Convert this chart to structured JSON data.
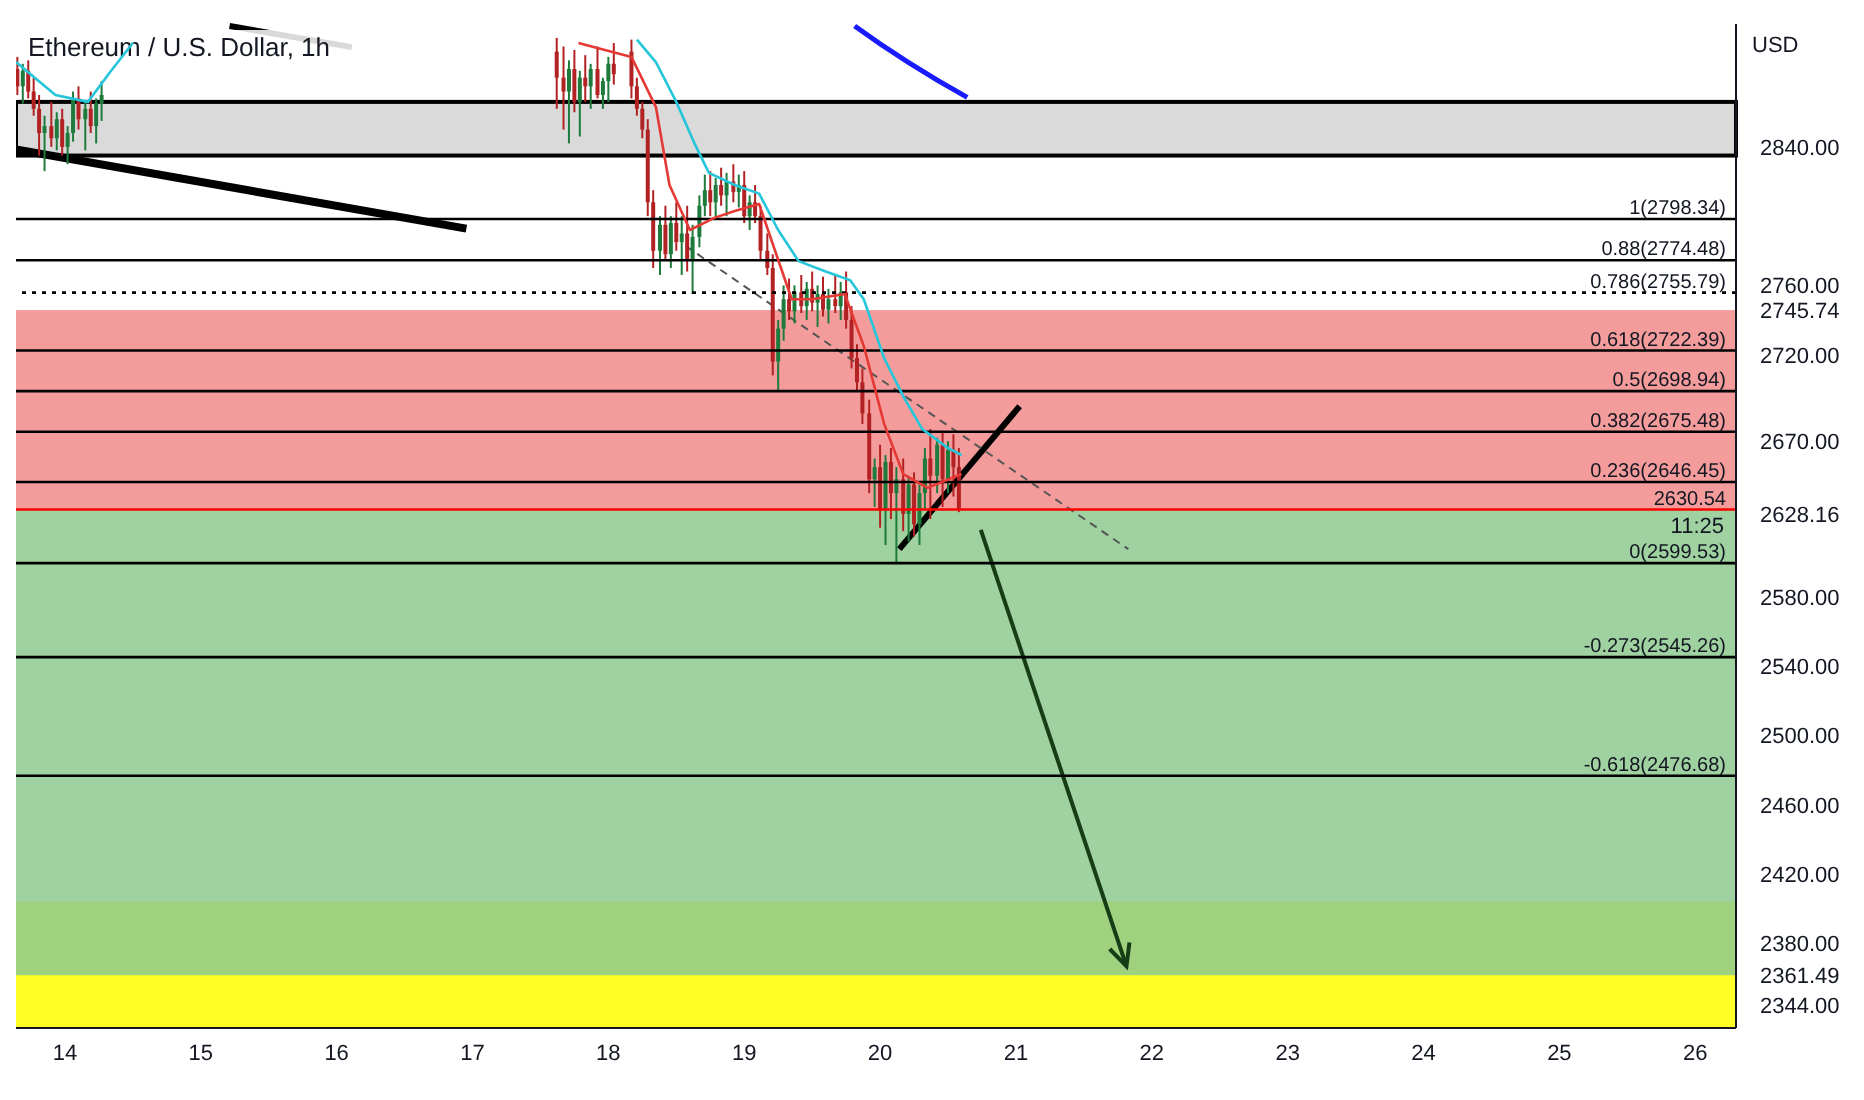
{
  "chart_data": {
    "type": "candlestick",
    "title": "Ethereum / U.S. Dollar, 1h",
    "annotations": [
      "USD",
      "11:25"
    ],
    "xlim": [
      13.64,
      26.3
    ],
    "xticks": [
      14,
      15,
      16,
      17,
      18,
      19,
      20,
      21,
      22,
      23,
      24,
      25,
      26
    ],
    "ylim": [
      2331,
      2911
    ],
    "yticks": [
      {
        "value": 2344,
        "label": "2344.00"
      },
      {
        "value": 2361.49,
        "label": "2361.49"
      },
      {
        "value": 2380,
        "label": "2380.00"
      },
      {
        "value": 2420,
        "label": "2420.00"
      },
      {
        "value": 2460,
        "label": "2460.00"
      },
      {
        "value": 2500,
        "label": "2500.00"
      },
      {
        "value": 2540,
        "label": "2540.00"
      },
      {
        "value": 2580,
        "label": "2580.00"
      },
      {
        "value": 2628.16,
        "label": "2628.16"
      },
      {
        "value": 2670,
        "label": "2670.00"
      },
      {
        "value": 2720,
        "label": "2720.00"
      },
      {
        "value": 2745.74,
        "label": "2745.74"
      },
      {
        "value": 2760,
        "label": "2760.00"
      },
      {
        "value": 2840,
        "label": "2840.00"
      }
    ],
    "x": [
      13.65,
      13.69,
      13.73,
      13.77,
      13.81,
      13.85,
      13.9,
      13.94,
      13.98,
      14.02,
      14.06,
      14.1,
      14.15,
      14.19,
      14.23,
      14.27,
      17.62,
      17.67,
      17.71,
      17.75,
      17.79,
      17.83,
      17.87,
      17.92,
      17.96,
      18.0,
      18.04,
      18.17,
      18.21,
      18.25,
      18.29,
      18.33,
      18.38,
      18.42,
      18.46,
      18.5,
      18.54,
      18.58,
      18.62,
      18.67,
      18.71,
      18.75,
      18.79,
      18.83,
      18.87,
      18.92,
      18.96,
      19.0,
      19.04,
      19.08,
      19.12,
      19.17,
      19.21,
      19.25,
      19.29,
      19.33,
      19.37,
      19.42,
      19.46,
      19.5,
      19.54,
      19.58,
      19.62,
      19.67,
      19.71,
      19.75,
      19.79,
      19.83,
      19.87,
      19.92,
      19.96,
      20.0,
      20.04,
      20.08,
      20.12,
      20.17,
      20.21,
      20.25,
      20.29,
      20.33,
      20.37,
      20.42,
      20.46,
      20.5,
      20.54,
      20.58
    ],
    "ohlc": [
      [
        2885,
        2892,
        2870,
        2875
      ],
      [
        2875,
        2888,
        2865,
        2884
      ],
      [
        2884,
        2890,
        2868,
        2872
      ],
      [
        2872,
        2880,
        2858,
        2862
      ],
      [
        2862,
        2870,
        2835,
        2848
      ],
      [
        2848,
        2858,
        2826,
        2852
      ],
      [
        2852,
        2866,
        2840,
        2845
      ],
      [
        2845,
        2860,
        2838,
        2856
      ],
      [
        2856,
        2862,
        2835,
        2840
      ],
      [
        2840,
        2852,
        2830,
        2848
      ],
      [
        2848,
        2872,
        2843,
        2868
      ],
      [
        2868,
        2875,
        2850,
        2856
      ],
      [
        2856,
        2866,
        2838,
        2862
      ],
      [
        2862,
        2872,
        2848,
        2852
      ],
      [
        2852,
        2868,
        2842,
        2865
      ],
      [
        2865,
        2878,
        2855,
        2870
      ],
      [
        2895,
        2903,
        2862,
        2880
      ],
      [
        2880,
        2898,
        2850,
        2872
      ],
      [
        2872,
        2890,
        2842,
        2885
      ],
      [
        2885,
        2896,
        2860,
        2866
      ],
      [
        2866,
        2884,
        2846,
        2880
      ],
      [
        2880,
        2893,
        2866,
        2875
      ],
      [
        2875,
        2888,
        2862,
        2885
      ],
      [
        2885,
        2898,
        2868,
        2870
      ],
      [
        2870,
        2880,
        2862,
        2878
      ],
      [
        2878,
        2892,
        2866,
        2888
      ],
      [
        2888,
        2900,
        2876,
        2882
      ],
      [
        2895,
        2902,
        2868,
        2875
      ],
      [
        2875,
        2880,
        2858,
        2862
      ],
      [
        2862,
        2866,
        2845,
        2850
      ],
      [
        2850,
        2856,
        2800,
        2808
      ],
      [
        2808,
        2815,
        2770,
        2780
      ],
      [
        2780,
        2800,
        2766,
        2795
      ],
      [
        2795,
        2806,
        2775,
        2778
      ],
      [
        2778,
        2800,
        2770,
        2796
      ],
      [
        2796,
        2808,
        2780,
        2785
      ],
      [
        2785,
        2800,
        2766,
        2790
      ],
      [
        2790,
        2806,
        2768,
        2775
      ],
      [
        2775,
        2795,
        2755,
        2788
      ],
      [
        2788,
        2812,
        2782,
        2806
      ],
      [
        2806,
        2824,
        2800,
        2815
      ],
      [
        2815,
        2826,
        2800,
        2808
      ],
      [
        2808,
        2822,
        2798,
        2818
      ],
      [
        2818,
        2828,
        2806,
        2812
      ],
      [
        2812,
        2825,
        2800,
        2820
      ],
      [
        2820,
        2830,
        2808,
        2814
      ],
      [
        2814,
        2824,
        2805,
        2818
      ],
      [
        2818,
        2826,
        2796,
        2800
      ],
      [
        2800,
        2812,
        2792,
        2808
      ],
      [
        2808,
        2818,
        2796,
        2800
      ],
      [
        2800,
        2806,
        2775,
        2780
      ],
      [
        2780,
        2790,
        2766,
        2770
      ],
      [
        2770,
        2778,
        2708,
        2716
      ],
      [
        2716,
        2740,
        2699,
        2735
      ],
      [
        2735,
        2760,
        2728,
        2752
      ],
      [
        2752,
        2764,
        2740,
        2745
      ],
      [
        2745,
        2760,
        2738,
        2756
      ],
      [
        2756,
        2766,
        2744,
        2748
      ],
      [
        2748,
        2762,
        2740,
        2758
      ],
      [
        2758,
        2768,
        2745,
        2750
      ],
      [
        2750,
        2760,
        2736,
        2755
      ],
      [
        2755,
        2765,
        2742,
        2746
      ],
      [
        2746,
        2758,
        2738,
        2752
      ],
      [
        2752,
        2766,
        2744,
        2748
      ],
      [
        2748,
        2762,
        2740,
        2756
      ],
      [
        2756,
        2768,
        2735,
        2740
      ],
      [
        2740,
        2748,
        2712,
        2718
      ],
      [
        2718,
        2726,
        2699,
        2704
      ],
      [
        2704,
        2712,
        2680,
        2686
      ],
      [
        2686,
        2694,
        2640,
        2648
      ],
      [
        2648,
        2660,
        2632,
        2655
      ],
      [
        2655,
        2668,
        2620,
        2630
      ],
      [
        2630,
        2662,
        2610,
        2658
      ],
      [
        2658,
        2666,
        2625,
        2640
      ],
      [
        2640,
        2655,
        2600,
        2648
      ],
      [
        2648,
        2660,
        2618,
        2628
      ],
      [
        2628,
        2650,
        2612,
        2645
      ],
      [
        2645,
        2652,
        2615,
        2622
      ],
      [
        2622,
        2646,
        2610,
        2640
      ],
      [
        2640,
        2666,
        2630,
        2660
      ],
      [
        2660,
        2677,
        2625,
        2650
      ],
      [
        2650,
        2672,
        2640,
        2668
      ],
      [
        2668,
        2676,
        2632,
        2648
      ],
      [
        2648,
        2670,
        2640,
        2665
      ],
      [
        2665,
        2674,
        2638,
        2655
      ],
      [
        2655,
        2666,
        2629,
        2630.54
      ]
    ],
    "series": [
      {
        "type": "line",
        "color": "#e53935",
        "x": [
          17.78,
          18.17,
          18.35,
          18.45,
          18.6,
          18.78,
          18.93,
          19.11,
          19.24,
          19.35,
          19.5,
          19.74,
          19.88,
          20.03,
          20.17,
          20.35,
          20.6
        ],
        "values": [
          2900,
          2892,
          2863,
          2818,
          2792,
          2799,
          2803,
          2807,
          2777,
          2752,
          2752,
          2755,
          2725,
          2680,
          2651,
          2643,
          2651
        ]
      },
      {
        "type": "line",
        "color": "#26c6da",
        "x": [
          13.64,
          13.93,
          14.17,
          14.33,
          14.5,
          15.5,
          18.21,
          18.35,
          18.5,
          18.64,
          18.74,
          18.93,
          19.11,
          19.25,
          19.4,
          19.6,
          19.78,
          19.88,
          20.03,
          20.17,
          20.31,
          20.5,
          20.6
        ],
        "values": [
          2889,
          2870,
          2866,
          2883,
          2900,
          null,
          2902,
          2889,
          2866,
          2841,
          2825,
          2818,
          2813,
          2792,
          2774,
          2768,
          2763,
          2752,
          2718,
          2696,
          2677,
          2666,
          2662
        ]
      }
    ],
    "marker": "none",
    "bands": [
      {
        "axis": "y",
        "from": 2835,
        "to": 2866,
        "color": "#d3d3d3"
      },
      {
        "axis": "y",
        "from": 2331,
        "to": 2404,
        "color": "#ffff00"
      },
      {
        "axis": "y",
        "from": 2630.54,
        "to": 2745.74,
        "color": "#f28b8b"
      },
      {
        "axis": "y",
        "from": 2361.49,
        "to": 2630.54,
        "color": "#8fc98f"
      }
    ],
    "ref_lines": [
      {
        "axis": "y",
        "value": 2798.34,
        "label": "1(2798.34)",
        "color": "#000000"
      },
      {
        "axis": "y",
        "value": 2774.48,
        "label": "0.88(2774.48)",
        "color": "#000000"
      },
      {
        "axis": "y",
        "value": 2755.79,
        "label": "0.786(2755.79)",
        "color": "#000000",
        "line_style": "dotted"
      },
      {
        "axis": "y",
        "value": 2722.39,
        "label": "0.618(2722.39)",
        "color": "#000000"
      },
      {
        "axis": "y",
        "value": 2698.94,
        "label": "0.5(2698.94)",
        "color": "#000000"
      },
      {
        "axis": "y",
        "value": 2675.48,
        "label": "0.382(2675.48)",
        "color": "#000000"
      },
      {
        "axis": "y",
        "value": 2646.45,
        "label": "0.236(2646.45)",
        "color": "#000000"
      },
      {
        "axis": "y",
        "value": 2630.54,
        "label": "2630.54",
        "color": "#ff0000"
      },
      {
        "axis": "y",
        "value": 2599.53,
        "label": "0(2599.53)",
        "color": "#000000"
      },
      {
        "axis": "y",
        "value": 2545.26,
        "label": "-0.273(2545.26)",
        "color": "#000000"
      },
      {
        "axis": "y",
        "value": 2476.68,
        "label": "-0.618(2476.68)",
        "color": "#000000"
      }
    ]
  }
}
